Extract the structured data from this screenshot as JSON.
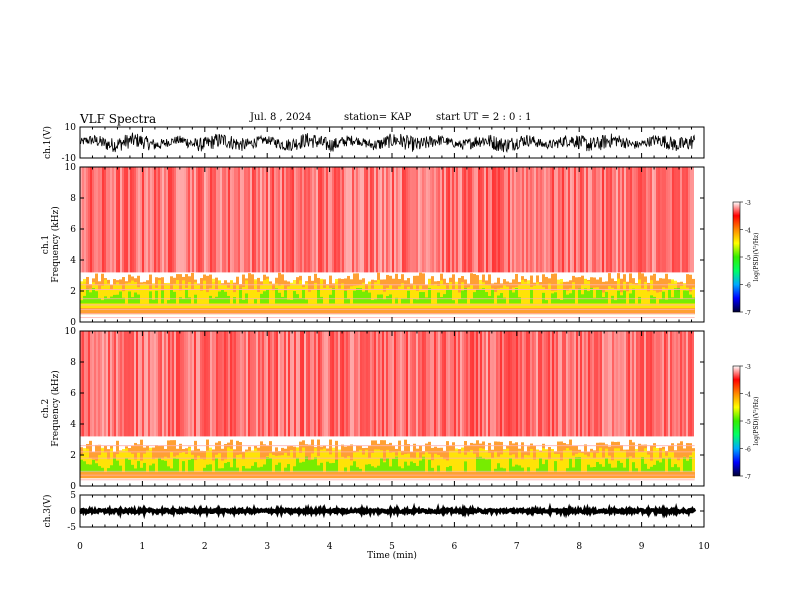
{
  "header": {
    "title": "VLF Spectra",
    "date": "Jul. 8 , 2024",
    "station": "station= KAP",
    "start": "start UT = 2 : 0 : 1"
  },
  "chart_data": [
    {
      "type": "line",
      "name": "waveform-ch1",
      "ylabel": "ch.1(V)",
      "ylim": [
        -10,
        10
      ],
      "yticks": [
        "10",
        "-10"
      ],
      "xlim": [
        0,
        10
      ]
    },
    {
      "type": "heatmap",
      "name": "spectrogram-ch1",
      "ylabel": "ch.1\nFrequency (kHz)",
      "ylim": [
        0,
        10
      ],
      "yticks": [
        "0",
        "2",
        "4",
        "6",
        "8",
        "10"
      ],
      "xlim": [
        0,
        10
      ],
      "data_end_min": 9.85,
      "colorbar": {
        "label": "log(PSD)(V²/Hz)",
        "range": [
          -7,
          -3
        ],
        "ticks": [
          "-3",
          "-4",
          "-5",
          "-6",
          "-7"
        ]
      }
    },
    {
      "type": "heatmap",
      "name": "spectrogram-ch2",
      "ylabel": "ch.2\nFrequency (kHz)",
      "ylim": [
        0,
        10
      ],
      "yticks": [
        "0",
        "2",
        "4",
        "6",
        "8",
        "10"
      ],
      "xlim": [
        0,
        10
      ],
      "data_end_min": 9.85,
      "colorbar": {
        "label": "log(PSD)(V²/Hz)",
        "range": [
          -7,
          -3
        ],
        "ticks": [
          "-3",
          "-4",
          "-5",
          "-6",
          "-7"
        ]
      }
    },
    {
      "type": "line",
      "name": "waveform-ch3",
      "ylabel": "ch.3(V)",
      "ylim": [
        -5,
        5
      ],
      "yticks": [
        "5",
        "0",
        "-5"
      ],
      "xlim": [
        0,
        10
      ],
      "xlabel": "Time (min)",
      "xticks": [
        "0",
        "1",
        "2",
        "3",
        "4",
        "5",
        "6",
        "7",
        "8",
        "9",
        "10"
      ]
    }
  ],
  "colors": {
    "axis": "#000000",
    "waveform": "#000000",
    "colormap": [
      "#000033",
      "#0000ff",
      "#00aaff",
      "#00ff66",
      "#33ee00",
      "#ffff00",
      "#ff8800",
      "#ff0000",
      "#ffffff"
    ]
  }
}
